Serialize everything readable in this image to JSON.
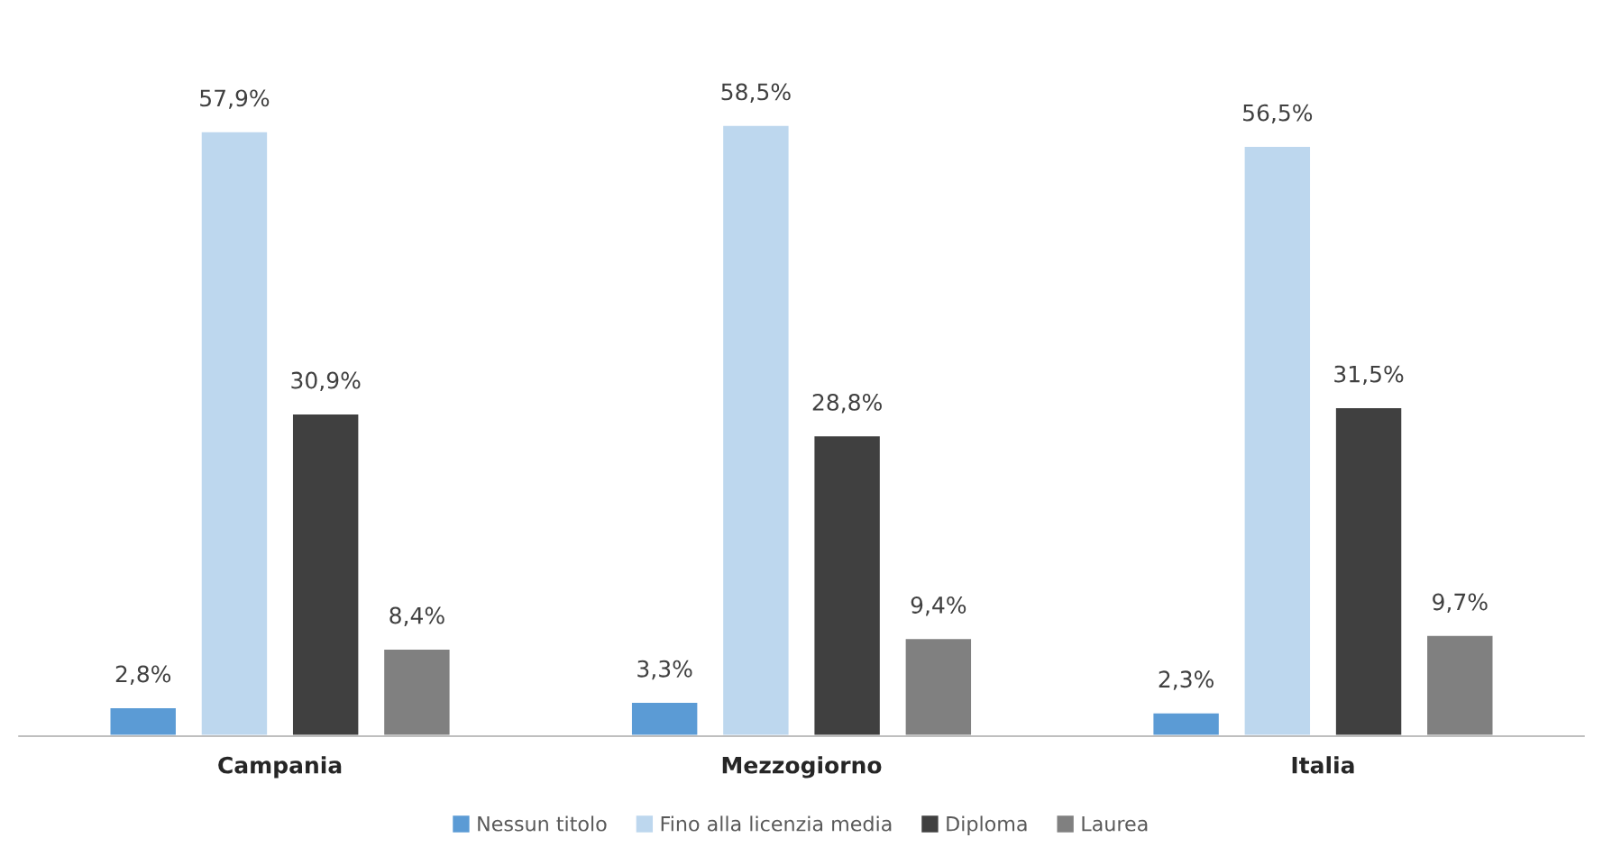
{
  "chart_data": {
    "type": "bar",
    "categories": [
      "Campania",
      "Mezzogiorno",
      "Italia"
    ],
    "series": [
      {
        "name": "Nessun titolo",
        "color": "#5b9bd5",
        "values": [
          2.8,
          3.3,
          2.3
        ],
        "value_labels": [
          "2,8%",
          "3,3%",
          "2,3%"
        ]
      },
      {
        "name": "Fino alla licenzia media",
        "color": "#bdd7ee",
        "values": [
          57.9,
          58.5,
          56.5
        ],
        "value_labels": [
          "57,9%",
          "58,5%",
          "56,5%"
        ]
      },
      {
        "name": "Diploma",
        "color": "#404040",
        "values": [
          30.9,
          28.8,
          31.5
        ],
        "value_labels": [
          "30,9%",
          "28,8%",
          "31,5%"
        ]
      },
      {
        "name": "Laurea",
        "color": "#808080",
        "values": [
          8.4,
          9.4,
          9.7
        ],
        "value_labels": [
          "8,4%",
          "9,4%",
          "9,7%"
        ]
      }
    ],
    "legend": "bottom",
    "grid": false
  }
}
